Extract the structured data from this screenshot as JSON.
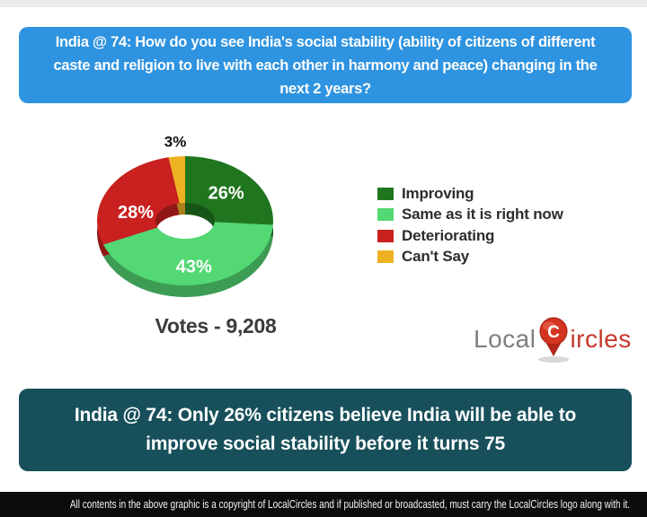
{
  "question_banner": {
    "text": "India @ 74: How do you see India's social stability (ability of citizens of different caste and religion to live with each other in harmony and peace) changing in the next 2 years?",
    "bg_color": "#2e93e0"
  },
  "chart_data": {
    "type": "pie",
    "style": "3d-donut",
    "categories": [
      "Improving",
      "Same as it is right now",
      "Deteriorating",
      "Can't Say"
    ],
    "values": [
      26,
      43,
      28,
      3
    ],
    "unit": "%",
    "colors": [
      "#20761f",
      "#53d874",
      "#c92020",
      "#edb222"
    ],
    "start_angle_deg": 0,
    "direction": "clockwise",
    "legend_position": "right"
  },
  "votes": {
    "label": "Votes - 9,208"
  },
  "logo": {
    "part1": "Local",
    "pin_letter": "C",
    "part2": "ircles"
  },
  "conclusion_banner": {
    "text": "India @ 74: Only 26% citizens believe India will be able to improve social stability before it turns 75",
    "bg_color": "#17505b"
  },
  "copyright_bar": {
    "text": "All contents in the above graphic is a copyright of LocalCircles and if published or broadcasted, must carry the LocalCircles logo along with it.",
    "bg_color": "#0c0c0c"
  }
}
